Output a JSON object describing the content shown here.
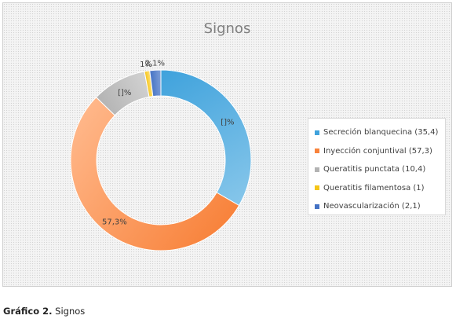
{
  "chart_data": {
    "type": "pie",
    "title": "Signos",
    "legend_position": "right",
    "categories": [
      "Secreción blanquecina (35,4)",
      "Inyección conjuntival (57,3)",
      "Queratitis punctata (10,4)",
      "Queratitis filamentosa (1)",
      "Neovascularización (2,1)"
    ],
    "values": [
      35.4,
      57.3,
      10.4,
      1,
      2.1
    ],
    "data_labels": [
      "[]%",
      "57,3%",
      "[]%",
      "1%",
      "2,1%"
    ],
    "colors": [
      "#3fa2dc",
      "#f8833c",
      "#b3b3b3",
      "#f5c518",
      "#4472c4"
    ],
    "colors_light": [
      "#86c6ea",
      "#ffb688",
      "#d2d2d2",
      "#ffe07a",
      "#7f9fd8"
    ]
  },
  "caption": {
    "prefix": "Gráfico 2.",
    "text": " Signos"
  }
}
